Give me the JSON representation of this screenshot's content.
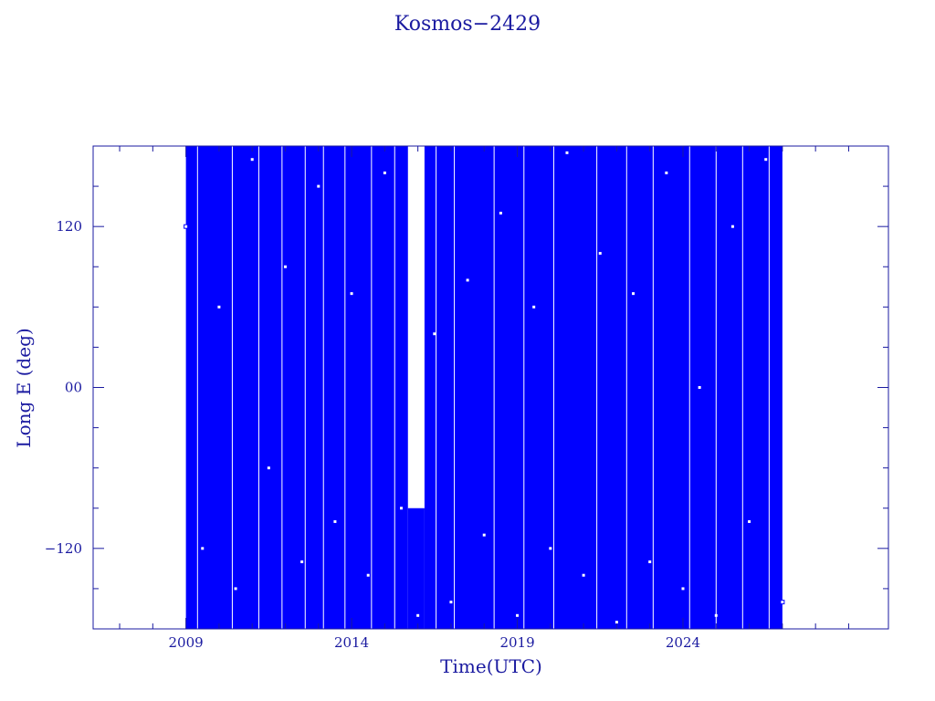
{
  "chart_data": {
    "type": "scatter",
    "title": "Kosmos−2429",
    "xlabel": "Time(UTC)",
    "ylabel": "Long E (deg)",
    "xlim": [
      2006.2,
      2030.2
    ],
    "ylim": [
      -180,
      180
    ],
    "x_ticks": [
      2009,
      2014,
      2019,
      2024
    ],
    "x_tick_labels": [
      "2009",
      "2014",
      "2019",
      "2024"
    ],
    "y_ticks": [
      120,
      0,
      -120
    ],
    "y_tick_labels": [
      "120",
      "00",
      "−120"
    ],
    "data_range_x": [
      2009.0,
      2027.0
    ],
    "gap_x": [
      2015.7,
      2016.2
    ],
    "series_color": "#0000ff",
    "axis_color": "#1a1aa0",
    "grid": false,
    "x": [
      2009.0,
      2009.5,
      2010.0,
      2010.5,
      2011.0,
      2011.5,
      2012.0,
      2012.5,
      2013.0,
      2013.5,
      2014.0,
      2014.5,
      2015.0,
      2015.5,
      2016.0,
      2016.5,
      2017.0,
      2017.5,
      2018.0,
      2018.5,
      2019.0,
      2019.5,
      2020.0,
      2020.5,
      2021.0,
      2021.5,
      2022.0,
      2022.5,
      2023.0,
      2023.5,
      2024.0,
      2024.5,
      2025.0,
      2025.5,
      2026.0,
      2026.5,
      2027.0
    ],
    "y": [
      120,
      -120,
      60,
      -150,
      170,
      -60,
      90,
      -130,
      150,
      -100,
      70,
      -140,
      160,
      -90,
      -170,
      40,
      -160,
      80,
      -110,
      130,
      -170,
      60,
      -120,
      175,
      -140,
      100,
      -175,
      70,
      -130,
      160,
      -150,
      0,
      -170,
      120,
      -100,
      170,
      -160
    ]
  }
}
